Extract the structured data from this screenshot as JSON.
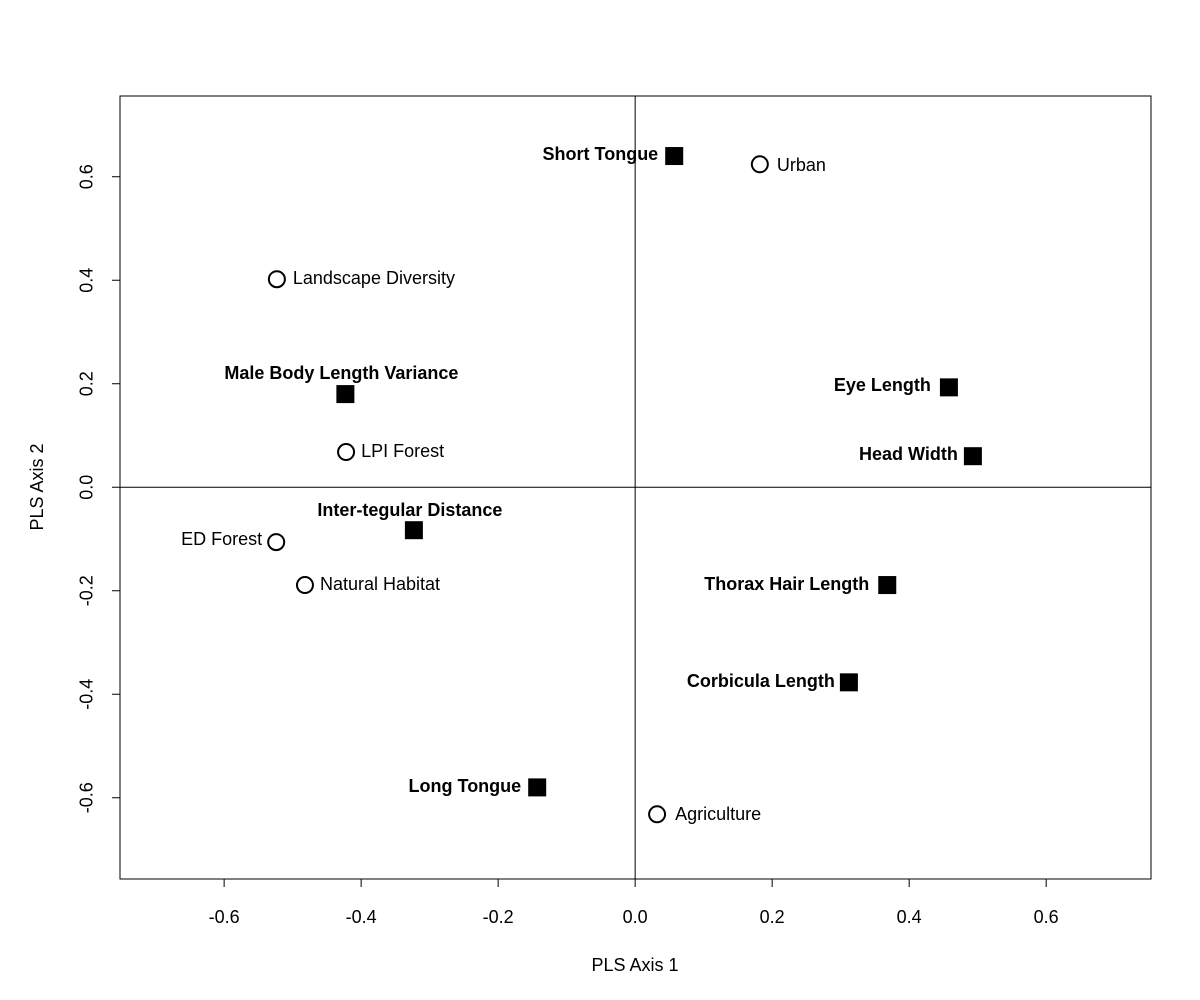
{
  "chart_data": {
    "type": "scatter",
    "xlabel": "PLS Axis 1",
    "ylabel": "PLS Axis 2",
    "xlim": [
      -0.752,
      0.753
    ],
    "ylim": [
      -0.757,
      0.756
    ],
    "xticks": [
      -0.6,
      -0.4,
      -0.2,
      {
        "value": 0,
        "label": "0.0"
      },
      0.2,
      0.4,
      0.6
    ],
    "yticks": [
      -0.6,
      -0.4,
      -0.2,
      {
        "value": 0,
        "label": "0.0"
      },
      0.2,
      0.4,
      0.6
    ],
    "reference_lines": {
      "x": 0,
      "y": 0
    },
    "color": "#000000",
    "points": [
      {
        "label": "Short Tongue",
        "x": 0.057,
        "y": 0.64,
        "marker": "square"
      },
      {
        "label": "Male Body Length Variance",
        "x": -0.423,
        "y": 0.18,
        "marker": "square"
      },
      {
        "label": "Eye Length",
        "x": 0.458,
        "y": 0.193,
        "marker": "square"
      },
      {
        "label": "Head Width",
        "x": 0.493,
        "y": 0.06,
        "marker": "square"
      },
      {
        "label": "Inter-tegular Distance",
        "x": -0.323,
        "y": -0.083,
        "marker": "square"
      },
      {
        "label": "Thorax Hair Length",
        "x": 0.368,
        "y": -0.189,
        "marker": "square"
      },
      {
        "label": "Corbicula Length",
        "x": 0.312,
        "y": -0.377,
        "marker": "square"
      },
      {
        "label": "Long Tongue",
        "x": -0.143,
        "y": -0.58,
        "marker": "square"
      },
      {
        "label": "Urban",
        "x": 0.182,
        "y": 0.624,
        "marker": "circle"
      },
      {
        "label": "Landscape Diversity",
        "x": -0.523,
        "y": 0.402,
        "marker": "circle"
      },
      {
        "label": "LPI Forest",
        "x": -0.422,
        "y": 0.068,
        "marker": "circle"
      },
      {
        "label": "ED Forest",
        "x": -0.524,
        "y": -0.106,
        "marker": "circle"
      },
      {
        "label": "Natural Habitat",
        "x": -0.482,
        "y": -0.189,
        "marker": "circle"
      },
      {
        "label": "Agriculture",
        "x": 0.032,
        "y": -0.632,
        "marker": "circle"
      }
    ]
  }
}
